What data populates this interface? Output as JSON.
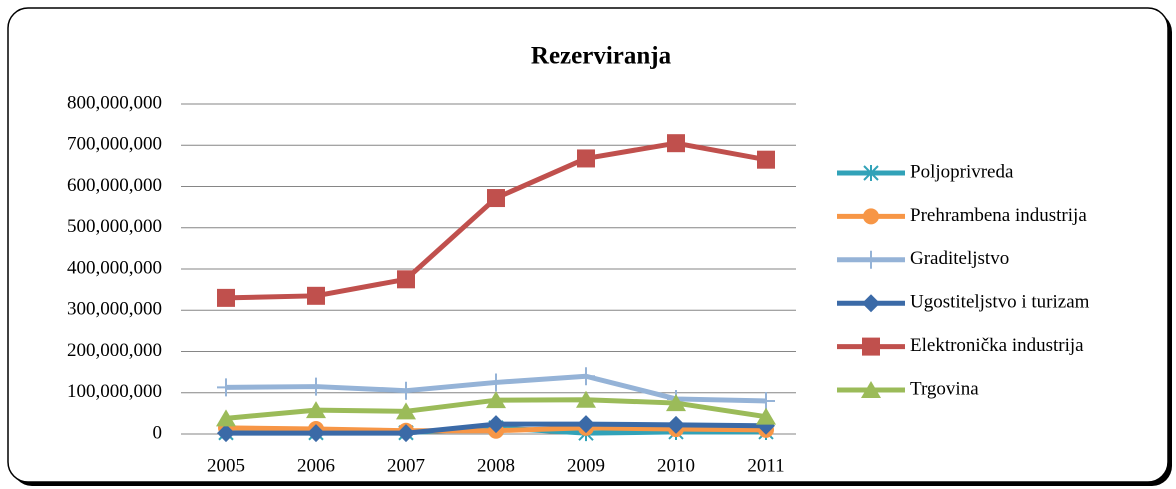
{
  "chart_data": {
    "type": "line",
    "title": "Rezerviranja",
    "categories": [
      "2005",
      "2006",
      "2007",
      "2008",
      "2009",
      "2010",
      "2011"
    ],
    "series": [
      {
        "name": "Poljoprivreda",
        "color": "#31a2b8",
        "marker": "star",
        "values": [
          3000000,
          3000000,
          3000000,
          15000000,
          2000000,
          5000000,
          5000000
        ]
      },
      {
        "name": "Prehrambena industrija",
        "color": "#f79646",
        "marker": "circle",
        "values": [
          15000000,
          12000000,
          8000000,
          8000000,
          15000000,
          12000000,
          10000000
        ]
      },
      {
        "name": "Graditeljstvo",
        "color": "#95b3d7",
        "marker": "plus",
        "values": [
          113000000,
          115000000,
          105000000,
          125000000,
          140000000,
          85000000,
          80000000
        ]
      },
      {
        "name": "Ugostiteljstvo i turizam",
        "color": "#3b6aa7",
        "marker": "diamond",
        "values": [
          2000000,
          2000000,
          2000000,
          24000000,
          24000000,
          22000000,
          20000000
        ]
      },
      {
        "name": "Elektronička industrija",
        "color": "#c0504d",
        "marker": "square",
        "values": [
          330000000,
          335000000,
          375000000,
          572000000,
          668000000,
          705000000,
          665000000
        ]
      },
      {
        "name": "Trgovina",
        "color": "#9bbb59",
        "marker": "triangle",
        "values": [
          38000000,
          58000000,
          55000000,
          82000000,
          83000000,
          75000000,
          42000000
        ]
      }
    ],
    "ylim": [
      0,
      800000000
    ],
    "yticks": [
      0,
      {
        "value": 100000000,
        "label": "100,000,000"
      },
      {
        "value": 200000000,
        "label": "200,000,000"
      },
      {
        "value": 300000000,
        "label": "300,000,000"
      },
      {
        "value": 400000000,
        "label": "400,000,000"
      },
      {
        "value": 500000000,
        "label": "500,000,000"
      },
      {
        "value": 600000000,
        "label": "600,000,000"
      },
      {
        "value": 700000000,
        "label": "700,000,000"
      },
      {
        "value": 800000000,
        "label": "800,000,000"
      }
    ],
    "grid": true,
    "legend": "right"
  }
}
